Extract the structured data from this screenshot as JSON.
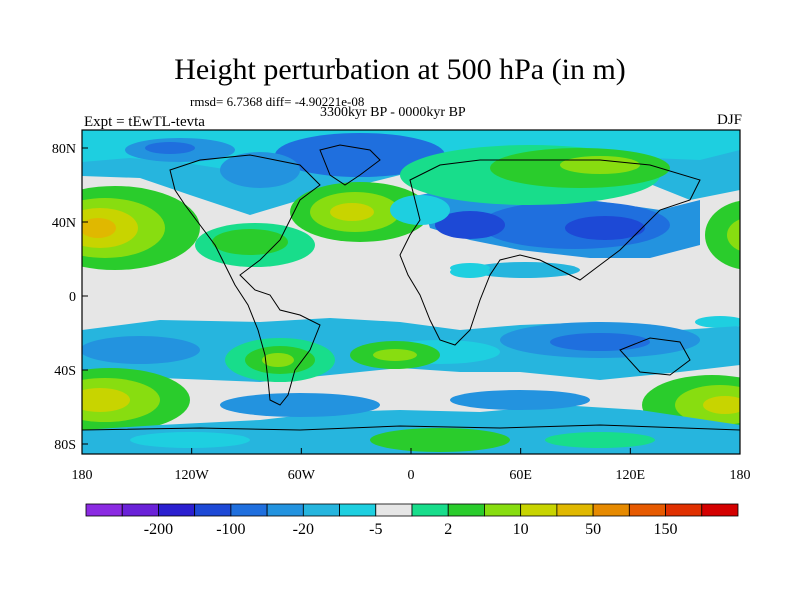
{
  "title": "Height perturbation at 500 hPa (in m)",
  "stats_label": "rmsd= 6.7368 diff= -4.90221e-08",
  "period_label": "3300kyr BP - 0000kyr BP",
  "experiment_label": "Expt = tEwTL-tevta",
  "season_label": "DJF",
  "lat_ticks": [
    "80N",
    "40N",
    "0",
    "40S",
    "80S"
  ],
  "lon_ticks": [
    "180",
    "120W",
    "60W",
    "0",
    "60E",
    "120E",
    "180"
  ],
  "colorbar": {
    "colors": [
      "#8b2be2",
      "#6a22d8",
      "#2b1fd0",
      "#1d49d6",
      "#1f6fde",
      "#2393df",
      "#26b5de",
      "#1ecfe0",
      "#e6e6e6",
      "#18dd8b",
      "#2acc2c",
      "#88dd10",
      "#c8d400",
      "#e0b800",
      "#e68a00",
      "#e65a00",
      "#e03000",
      "#d40000"
    ],
    "labels": [
      "-200",
      "-100",
      "-20",
      "-5",
      "2",
      "10",
      "50",
      "150"
    ]
  }
}
